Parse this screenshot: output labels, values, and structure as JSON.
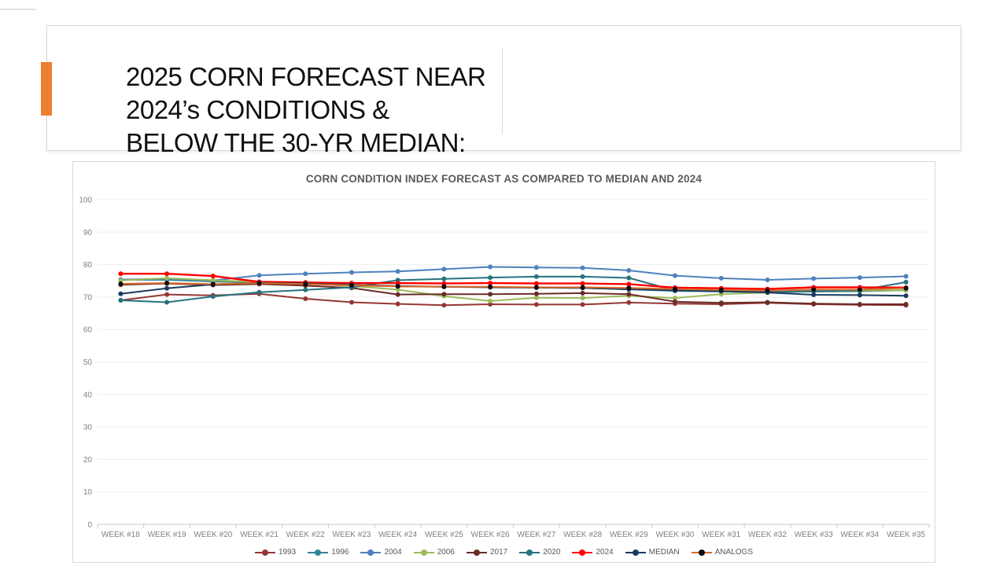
{
  "slide": {
    "title": "2025 CORN FORECAST NEAR\n2024’s CONDITIONS &\nBELOW THE 30-YR MEDIAN:",
    "accent_color": "#ED7D31"
  },
  "chart_data": {
    "type": "line",
    "title": "CORN CONDITION INDEX FORECAST AS COMPARED TO MEDIAN AND 2024",
    "categories": [
      "WEEK #18",
      "WEEK #19",
      "WEEK #20",
      "WEEK #21",
      "WEEK #22",
      "WEEK #23",
      "WEEK #24",
      "WEEK #25",
      "WEEK #26",
      "WEEK #27",
      "WEEK #28",
      "WEEK #29",
      "WEEK #30",
      "WEEK #31",
      "WEEK #32",
      "WEEK #33",
      "WEEK #34",
      "WEEK #35"
    ],
    "ylim": [
      0,
      100
    ],
    "yticks": [
      0,
      10,
      20,
      30,
      40,
      50,
      60,
      70,
      80,
      90,
      100
    ],
    "grid": true,
    "legend_position": "bottom",
    "axis_text_color": "#808080",
    "gridline_color": "#ededed",
    "axis_line_color": "#c9c9c9",
    "series": [
      {
        "name": "1993",
        "color": "#953735",
        "values": [
          69.0,
          70.8,
          70.5,
          71.0,
          69.5,
          68.4,
          67.9,
          67.5,
          67.8,
          67.7,
          67.7,
          68.3,
          68.0,
          67.8,
          68.2,
          67.8,
          67.6,
          67.5
        ]
      },
      {
        "name": "1996",
        "color": "#2F8497",
        "values": [
          75.3,
          75.3,
          74.8,
          74.5,
          74.1,
          73.6,
          73.3,
          73.2,
          73.1,
          72.9,
          72.8,
          72.4,
          71.9,
          71.7,
          71.5,
          71.7,
          71.8,
          72.1
        ]
      },
      {
        "name": "2004",
        "color": "#4F81BD",
        "values": [
          75.4,
          75.6,
          75.1,
          76.7,
          77.2,
          77.6,
          77.9,
          78.6,
          79.3,
          79.1,
          79.0,
          78.2,
          76.6,
          75.8,
          75.3,
          75.7,
          76.0,
          76.4
        ]
      },
      {
        "name": "2006",
        "color": "#9BBB59",
        "values": [
          75.1,
          75.8,
          75.2,
          74.6,
          74.2,
          73.4,
          72.3,
          70.3,
          68.8,
          69.8,
          69.7,
          70.4,
          69.7,
          70.9,
          71.4,
          71.9,
          72.0,
          72.1
        ]
      },
      {
        "name": "2017",
        "color": "#6B2C28",
        "values": [
          73.8,
          74.2,
          73.7,
          74.0,
          73.5,
          72.8,
          70.8,
          70.9,
          70.9,
          71.0,
          71.2,
          70.9,
          68.6,
          68.2,
          68.4,
          68.0,
          67.8,
          67.8
        ]
      },
      {
        "name": "2020",
        "color": "#26727F",
        "values": [
          69.0,
          68.4,
          70.2,
          71.5,
          72.2,
          73.0,
          75.2,
          75.6,
          76.0,
          76.3,
          76.3,
          75.9,
          72.0,
          71.8,
          71.6,
          71.8,
          72.1,
          74.6
        ]
      },
      {
        "name": "2024",
        "color": "#FE0000",
        "values": [
          77.2,
          77.2,
          76.5,
          74.7,
          74.5,
          74.3,
          74.3,
          74.2,
          74.3,
          74.2,
          74.2,
          74.0,
          72.9,
          72.7,
          72.5,
          73.0,
          73.0,
          72.9
        ]
      },
      {
        "name": "MEDIAN",
        "color": "#1B3A5F",
        "values": [
          71.0,
          72.7,
          73.9,
          74.4,
          74.2,
          73.8,
          73.4,
          73.2,
          73.0,
          72.9,
          72.8,
          72.4,
          72.1,
          71.8,
          71.4,
          70.7,
          70.6,
          70.4
        ]
      },
      {
        "name": "ANALOGS",
        "color": "#D96A28",
        "marker_color": "#0D0D0D",
        "values": [
          74.1,
          74.3,
          74.0,
          74.3,
          74.0,
          73.6,
          73.3,
          73.2,
          73.2,
          73.0,
          73.0,
          72.8,
          72.5,
          72.2,
          72.0,
          72.3,
          72.3,
          72.7
        ]
      }
    ]
  }
}
